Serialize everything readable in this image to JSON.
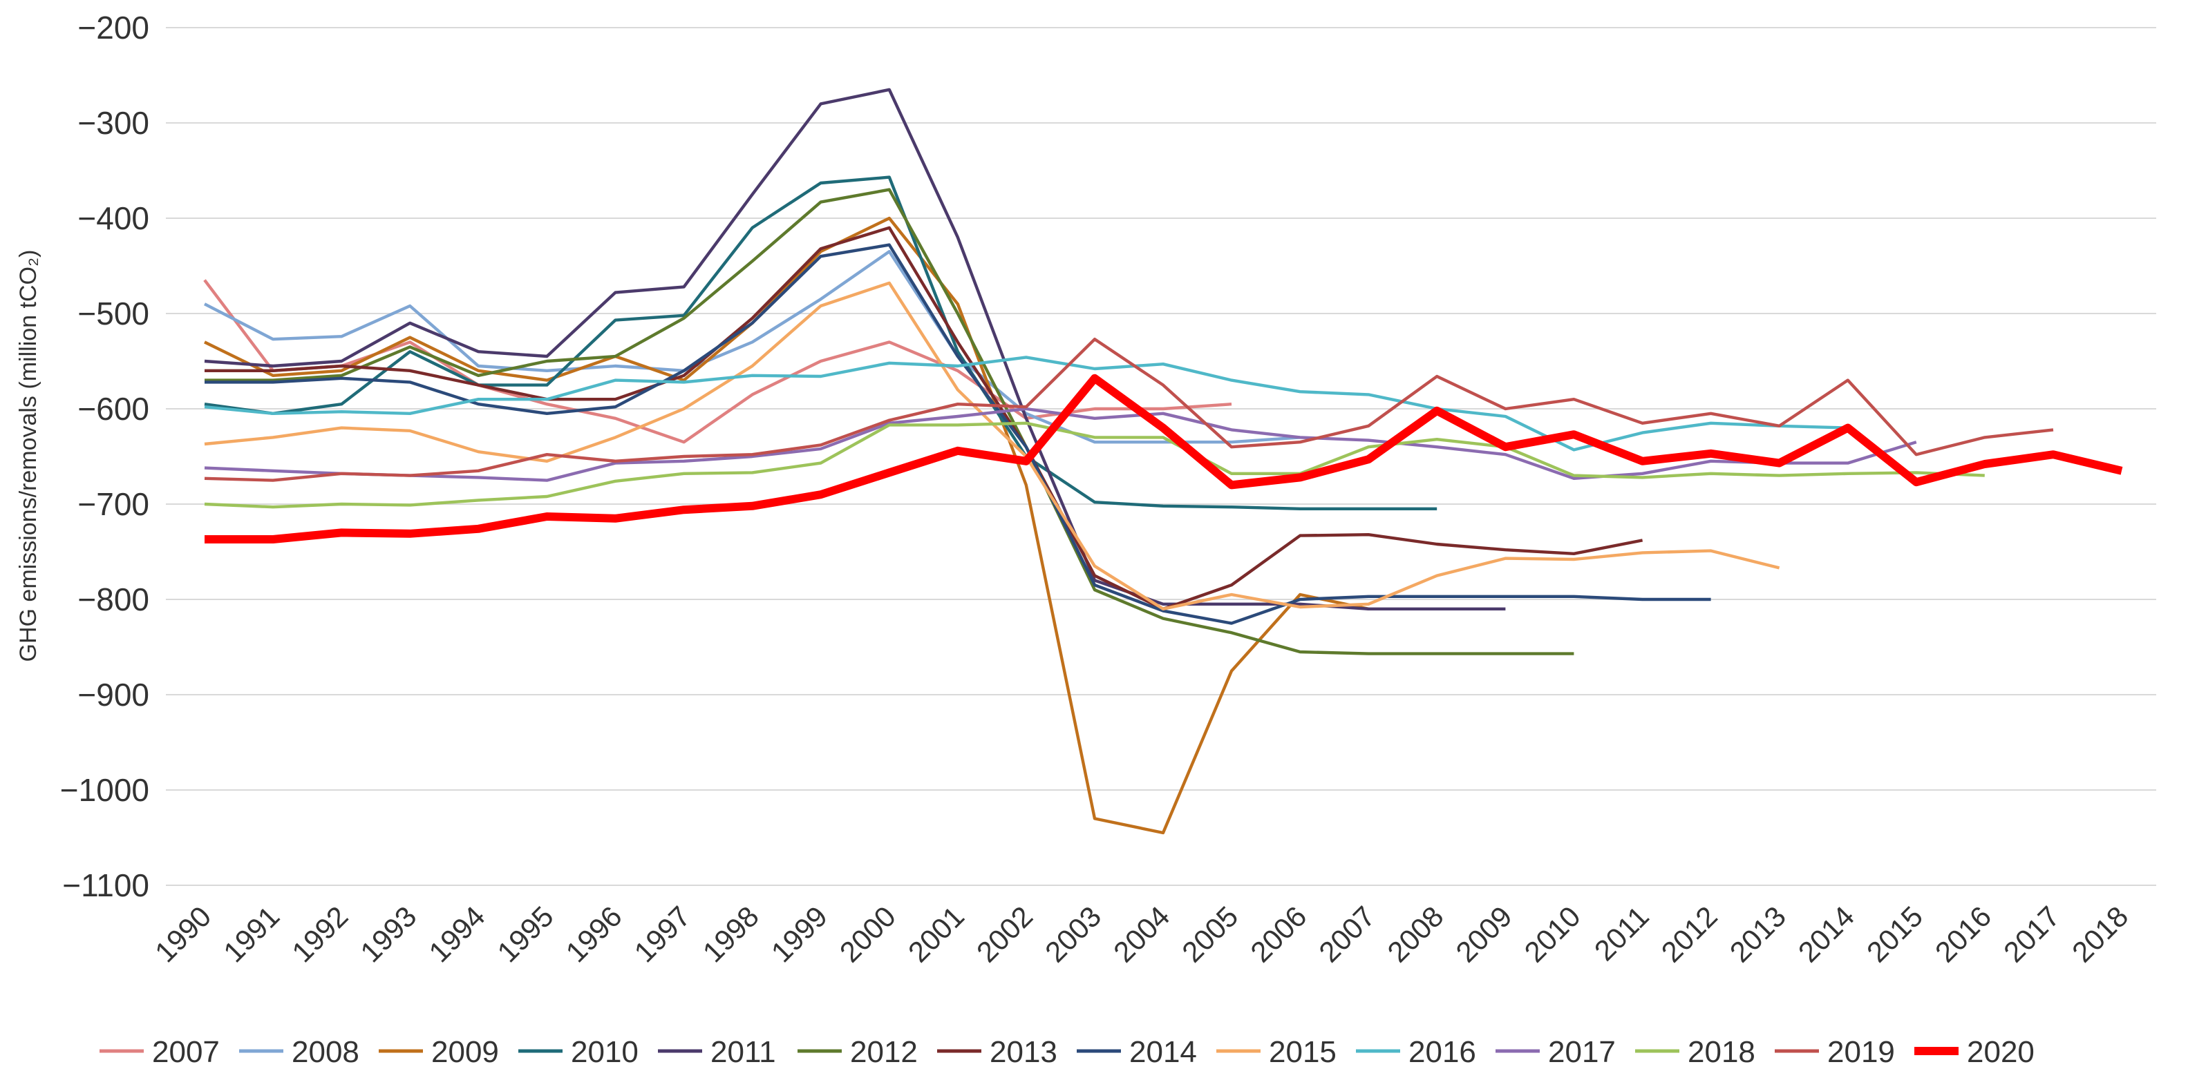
{
  "chart_data": {
    "type": "line",
    "y_label": "GHG emissions/removals (million tCO₂)",
    "categories": [
      "1990",
      "1991",
      "1992",
      "1993",
      "1994",
      "1995",
      "1996",
      "1997",
      "1998",
      "1999",
      "2000",
      "2001",
      "2002",
      "2003",
      "2004",
      "2005",
      "2006",
      "2007",
      "2008",
      "2009",
      "2010",
      "2011",
      "2012",
      "2013",
      "2014",
      "2015",
      "2016",
      "2017",
      "2018"
    ],
    "ylim": [
      -1100,
      -200
    ],
    "yticks": [
      {
        "value": -200,
        "label": "−200"
      },
      {
        "value": -300,
        "label": "−300"
      },
      {
        "value": -400,
        "label": "−400"
      },
      {
        "value": -500,
        "label": "−500"
      },
      {
        "value": -600,
        "label": "−600"
      },
      {
        "value": -700,
        "label": "−700"
      },
      {
        "value": -800,
        "label": "−800"
      },
      {
        "value": -900,
        "label": "−900"
      },
      {
        "value": -1000,
        "label": "−1000"
      },
      {
        "value": -1100,
        "label": "−1100"
      }
    ],
    "grid": true,
    "legend": "bottom",
    "series": [
      {
        "name": "2007",
        "color": "#e08080",
        "values": [
          -465,
          -560,
          -555,
          -530,
          -575,
          -595,
          -610,
          -635,
          -585,
          -550,
          -530,
          -560,
          -610,
          -600,
          -600,
          -595,
          null,
          null,
          null,
          null,
          null,
          null,
          null,
          null,
          null,
          null,
          null,
          null,
          null
        ]
      },
      {
        "name": "2008",
        "color": "#7fa6d4",
        "values": [
          -490,
          -527,
          -524,
          -492,
          -555,
          -560,
          -555,
          -560,
          -530,
          -485,
          -435,
          -545,
          -605,
          -635,
          -635,
          -635,
          -630,
          null,
          null,
          null,
          null,
          null,
          null,
          null,
          null,
          null,
          null,
          null,
          null
        ]
      },
      {
        "name": "2009",
        "color": "#c0701b",
        "values": [
          -530,
          -565,
          -560,
          -525,
          -560,
          -570,
          -545,
          -570,
          -510,
          -435,
          -400,
          -490,
          -680,
          -1030,
          -1045,
          -875,
          -795,
          -810,
          null,
          null,
          null,
          null,
          null,
          null,
          null,
          null,
          null,
          null,
          null
        ]
      },
      {
        "name": "2010",
        "color": "#1f6b78",
        "values": [
          -595,
          -605,
          -595,
          -540,
          -575,
          -575,
          -507,
          -502,
          -410,
          -363,
          -357,
          -540,
          -650,
          -698,
          -702,
          -703,
          -705,
          -705,
          -705,
          null,
          null,
          null,
          null,
          null,
          null,
          null,
          null,
          null,
          null
        ]
      },
      {
        "name": "2011",
        "color": "#4b3a6b",
        "values": [
          -550,
          -555,
          -550,
          -510,
          -540,
          -545,
          -478,
          -472,
          -375,
          -280,
          -265,
          -420,
          -610,
          -780,
          -805,
          -805,
          -805,
          -810,
          -810,
          -810,
          null,
          null,
          null,
          null,
          null,
          null,
          null,
          null,
          null
        ]
      },
      {
        "name": "2012",
        "color": "#5e7a2c",
        "values": [
          -570,
          -570,
          -565,
          -535,
          -565,
          -550,
          -545,
          -505,
          -445,
          -383,
          -370,
          -500,
          -640,
          -790,
          -820,
          -835,
          -855,
          -857,
          -857,
          -857,
          -857,
          null,
          null,
          null,
          null,
          null,
          null,
          null,
          null
        ]
      },
      {
        "name": "2013",
        "color": "#7a2a2a",
        "values": [
          -560,
          -560,
          -555,
          -560,
          -575,
          -590,
          -590,
          -565,
          -505,
          -432,
          -410,
          -530,
          -640,
          -775,
          -810,
          -785,
          -733,
          -732,
          -742,
          -748,
          -752,
          -738,
          null,
          null,
          null,
          null,
          null,
          null,
          null
        ]
      },
      {
        "name": "2014",
        "color": "#2b4a7a",
        "values": [
          -572,
          -572,
          -568,
          -572,
          -595,
          -605,
          -598,
          -560,
          -510,
          -440,
          -428,
          -545,
          -640,
          -785,
          -812,
          -825,
          -800,
          -797,
          -797,
          -797,
          -797,
          -800,
          -800,
          null,
          null,
          null,
          null,
          null,
          null
        ]
      },
      {
        "name": "2015",
        "color": "#f4a862",
        "values": [
          -637,
          -630,
          -620,
          -623,
          -645,
          -655,
          -630,
          -600,
          -555,
          -492,
          -468,
          -580,
          -650,
          -765,
          -810,
          -795,
          -808,
          -805,
          -775,
          -757,
          -758,
          -751,
          -749,
          -767,
          null,
          null,
          null,
          null,
          null
        ]
      },
      {
        "name": "2016",
        "color": "#4fb8c8",
        "values": [
          -598,
          -605,
          -603,
          -605,
          -590,
          -590,
          -570,
          -572,
          -565,
          -566,
          -552,
          -555,
          -546,
          -558,
          -553,
          -570,
          -582,
          -585,
          -600,
          -608,
          -643,
          -625,
          -615,
          -618,
          -620,
          null,
          null,
          null,
          null
        ]
      },
      {
        "name": "2017",
        "color": "#8b6bb0",
        "values": [
          -662,
          -665,
          -668,
          -670,
          -672,
          -675,
          -657,
          -655,
          -650,
          -642,
          -615,
          -608,
          -600,
          -610,
          -605,
          -622,
          -630,
          -633,
          -640,
          -648,
          -673,
          -668,
          -655,
          -657,
          -657,
          -635,
          null,
          null,
          null
        ]
      },
      {
        "name": "2018",
        "color": "#9dc35a",
        "values": [
          -700,
          -703,
          -700,
          -701,
          -696,
          -692,
          -676,
          -668,
          -667,
          -657,
          -617,
          -617,
          -615,
          -630,
          -630,
          -668,
          -668,
          -640,
          -632,
          -640,
          -670,
          -672,
          -668,
          -670,
          -668,
          -667,
          -670,
          null,
          null
        ]
      },
      {
        "name": "2019",
        "color": "#c0504d",
        "values": [
          -673,
          -675,
          -668,
          -670,
          -665,
          -648,
          -655,
          -650,
          -648,
          -638,
          -612,
          -595,
          -598,
          -527,
          -575,
          -640,
          -635,
          -618,
          -566,
          -600,
          -590,
          -615,
          -605,
          -618,
          -570,
          -648,
          -630,
          -622,
          null
        ]
      },
      {
        "name": "2020",
        "color": "#ff0000",
        "values": [
          -737,
          -737,
          -730,
          -731,
          -726,
          -713,
          -715,
          -706,
          -702,
          -690,
          -667,
          -644,
          -655,
          -568,
          -620,
          -680,
          -672,
          -653,
          -602,
          -640,
          -627,
          -655,
          -647,
          -657,
          -620,
          -677,
          -658,
          -648,
          -665
        ]
      }
    ]
  }
}
